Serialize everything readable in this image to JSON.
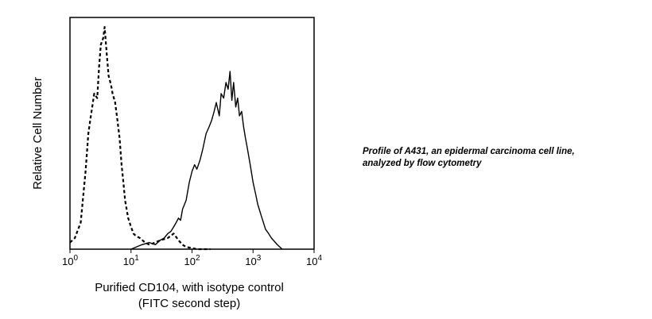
{
  "chart_data": {
    "type": "line",
    "xscale": "log",
    "xlim": [
      1,
      10000
    ],
    "ylim": [
      0,
      100
    ],
    "xlabel_line1": "Purified CD104, with isotype control",
    "xlabel_line2": "(FITC second step)",
    "ylabel": "Relative Cell Number",
    "grid": false,
    "legend": "none",
    "xticks": [
      {
        "base": "10",
        "exp": "0",
        "value": 1
      },
      {
        "base": "10",
        "exp": "1",
        "value": 10
      },
      {
        "base": "10",
        "exp": "2",
        "value": 100
      },
      {
        "base": "10",
        "exp": "3",
        "value": 1000
      },
      {
        "base": "10",
        "exp": "4",
        "value": 10000
      }
    ],
    "series": [
      {
        "style": "dashed",
        "x": [
          1.0,
          1.2,
          1.5,
          1.8,
          2.0,
          2.2,
          2.5,
          2.8,
          3.0,
          3.2,
          3.5,
          3.7,
          4.0,
          4.3,
          4.7,
          5.0,
          5.5,
          6.0,
          6.5,
          7.0,
          7.5,
          8.0,
          9.0,
          10.0,
          11.0,
          12.0,
          14.0,
          17.0,
          20.0,
          25.0,
          30.0,
          40.0,
          50.0,
          60.0,
          70.0,
          80.0,
          100.0,
          120.0,
          200.0
        ],
        "y": [
          3,
          5,
          12,
          35,
          52,
          60,
          70,
          68,
          82,
          92,
          95,
          100,
          88,
          78,
          74,
          70,
          66,
          58,
          50,
          38,
          30,
          22,
          14,
          10,
          7,
          6,
          5,
          3,
          2,
          3,
          4,
          5,
          7,
          4,
          2,
          1,
          0.5,
          0,
          0
        ]
      },
      {
        "style": "solid",
        "x": [
          10,
          15,
          20,
          25,
          30,
          35,
          40,
          45,
          50,
          55,
          60,
          65,
          70,
          80,
          90,
          100,
          110,
          120,
          135,
          150,
          170,
          190,
          210,
          230,
          250,
          280,
          300,
          330,
          360,
          390,
          420,
          450,
          480,
          520,
          560,
          600,
          650,
          700,
          750,
          800,
          900,
          1000,
          1100,
          1200,
          1400,
          1600,
          1800,
          2000,
          2500,
          3000
        ],
        "y": [
          0,
          2,
          3,
          2,
          4,
          5,
          7,
          8,
          10,
          12,
          14,
          13,
          18,
          22,
          30,
          35,
          38,
          36,
          40,
          45,
          52,
          55,
          58,
          62,
          66,
          60,
          70,
          68,
          75,
          72,
          80,
          67,
          75,
          64,
          68,
          60,
          62,
          55,
          50,
          46,
          38,
          30,
          25,
          20,
          14,
          9,
          7,
          5,
          2,
          0
        ]
      }
    ]
  },
  "caption": {
    "line1": "Profile of A431, an epidermal carcinoma cell line,",
    "line2": "analyzed by flow cytometry"
  }
}
